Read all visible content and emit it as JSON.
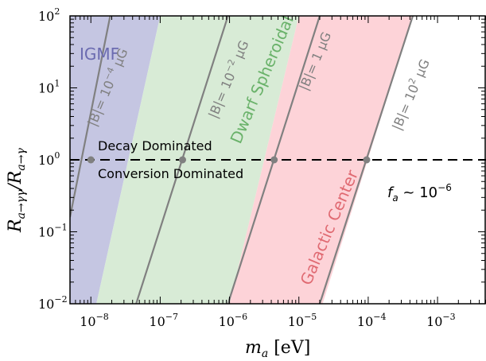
{
  "chart_data": {
    "type": "line",
    "title": "",
    "x_scale": "log",
    "y_scale": "log",
    "xlim": [
      5e-09,
      0.005
    ],
    "ylim": [
      0.01,
      100
    ],
    "x_ticks": [
      {
        "value": 1e-08,
        "base": "10",
        "exp": "−8"
      },
      {
        "value": 1e-07,
        "base": "10",
        "exp": "−7"
      },
      {
        "value": 1e-06,
        "base": "10",
        "exp": "−6"
      },
      {
        "value": 1e-05,
        "base": "10",
        "exp": "−5"
      },
      {
        "value": 0.0001,
        "base": "10",
        "exp": "−4"
      },
      {
        "value": 0.001,
        "base": "10",
        "exp": "−3"
      }
    ],
    "y_ticks": [
      {
        "value": 0.01,
        "base": "10",
        "exp": "−2"
      },
      {
        "value": 0.1,
        "base": "10",
        "exp": "−1"
      },
      {
        "value": 1,
        "base": "10",
        "exp": "0"
      },
      {
        "value": 10,
        "base": "10",
        "exp": "1"
      },
      {
        "value": 100,
        "base": "10",
        "exp": "2"
      }
    ],
    "xlabel_main": "m",
    "xlabel_sub": "a",
    "xlabel_unit": "[eV]",
    "ylabel_parts": [
      "R",
      "a→γγ",
      "/R",
      "a→γ"
    ],
    "bands": [
      {
        "label": "IGMF",
        "color": "#c5c6e2",
        "text_color": "#6b6bb0",
        "x_bottom": [
          5e-09,
          1.2e-08
        ],
        "x_top": [
          5e-09,
          1e-07
        ]
      },
      {
        "label": "Dwarf Spheroidal",
        "color": "#d8ebd6",
        "text_color": "#6ab26a",
        "x_bottom": [
          1.2e-08,
          1e-06
        ],
        "x_top": [
          1e-07,
          1e-05
        ]
      },
      {
        "label": "Galactic Center",
        "color": "#fdd3d8",
        "text_color": "#e06a72",
        "x_bottom": [
          1e-06,
          2.2e-05
        ],
        "x_top": [
          1e-05,
          0.00044
        ]
      }
    ],
    "field_lines": [
      {
        "label": "|B|= 10",
        "exp": "−4",
        "unit": " μG",
        "x_at_y1": 1e-08,
        "x_ymin": 5e-09,
        "y_xmin": 0.16,
        "x_ymax": 1.9e-08
      },
      {
        "label": "|B|= 10",
        "exp": "−2",
        "unit": " μG",
        "x_at_y1": 2.1e-07,
        "x_ymin": 4.5e-08,
        "x_ymax": 9.5e-07
      },
      {
        "label": "|B|= 1",
        "exp": "",
        "unit": " μG",
        "x_at_y1": 4.4e-06,
        "x_ymin": 9.5e-07,
        "x_ymax": 2e-05
      },
      {
        "label": "|B|= 10",
        "exp": "2",
        "unit": " μG",
        "x_at_y1": 9.5e-05,
        "x_ymin": 2e-05,
        "x_ymax": 0.00044
      }
    ],
    "threshold": {
      "y": 1,
      "style": "dashed",
      "label_above": "Decay Dominated",
      "label_below": "Conversion Dominated"
    },
    "markers": [
      {
        "x": 1e-08,
        "y": 1
      },
      {
        "x": 2.1e-07,
        "y": 1
      },
      {
        "x": 4.4e-06,
        "y": 1
      },
      {
        "x": 9.5e-05,
        "y": 1
      }
    ],
    "annotation": {
      "main": "f",
      "sub": "a",
      "rest": " ~ 10",
      "exp": "−6"
    },
    "colors": {
      "line": "#808080",
      "dash": "#000000",
      "marker": "#808080"
    }
  }
}
